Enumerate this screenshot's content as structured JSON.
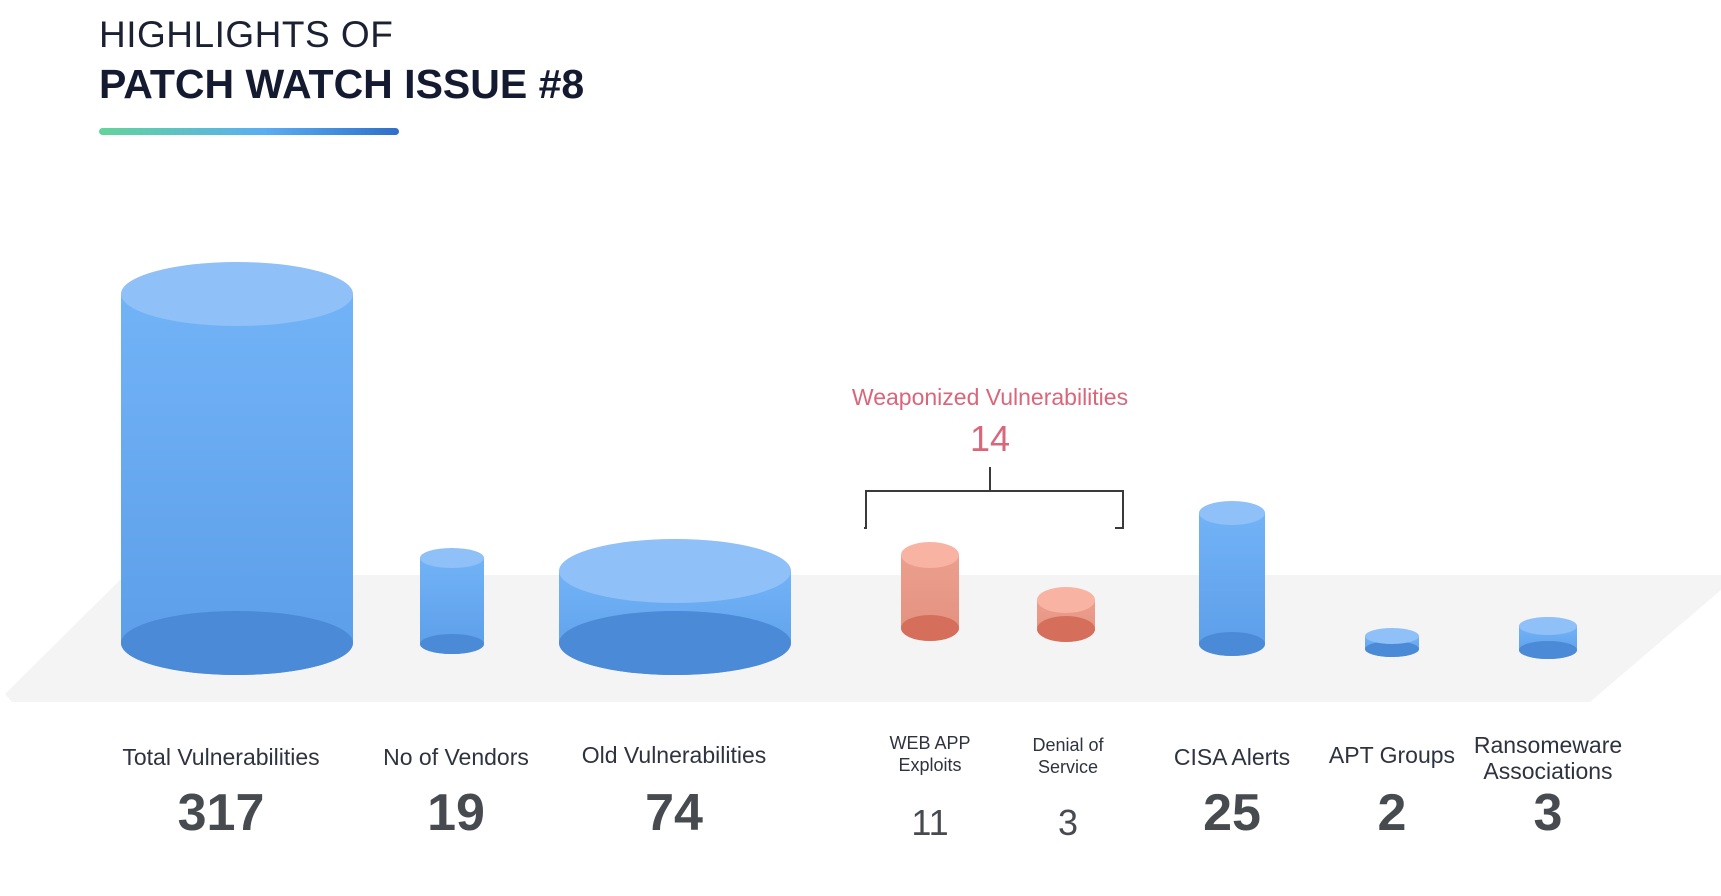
{
  "header": {
    "pretitle": "HIGHLIGHTS OF",
    "title": "PATCH WATCH ISSUE #8"
  },
  "colors": {
    "blue_top": "#8fc0f7",
    "blue_body": "#6aaef5",
    "blue_bottom": "#4a8ad6",
    "red_top": "#f8b3a3",
    "red_body": "#e99a8a",
    "red_bottom": "#d56f5c",
    "group_text": "#d9667a",
    "platform": "#f4f4f4"
  },
  "chart_data": {
    "type": "bar",
    "categories": [
      "Total Vulnerabilities",
      "No of Vendors",
      "Old Vulnerabilities",
      "WEB APP Exploits",
      "Denial of Service",
      "CISA Alerts",
      "APT Groups",
      "Ransomeware Associations"
    ],
    "values": [
      317,
      19,
      74,
      11,
      3,
      25,
      2,
      3
    ],
    "value_labels": [
      "317",
      "19",
      "74",
      "11",
      "3",
      "25",
      "2",
      "3"
    ],
    "highlighted": [
      "WEB APP Exploits",
      "Denial of Service"
    ],
    "group": {
      "label": "Weaponized Vulnerabilities",
      "value": "14",
      "members": [
        "WEB APP Exploits",
        "Denial of Service"
      ]
    }
  }
}
